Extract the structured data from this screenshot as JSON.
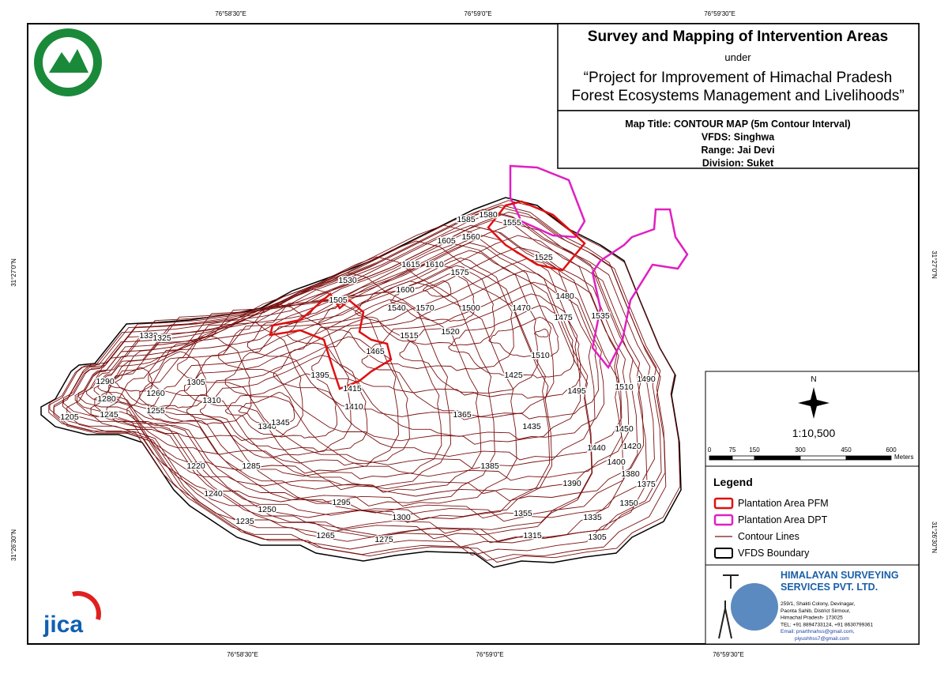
{
  "coordinates": {
    "top": [
      "76°58'30\"E",
      "76°59'0\"E",
      "76°59'30\"E"
    ],
    "bottom": [
      "76°58'30\"E",
      "76°59'0\"E",
      "76°59'30\"E"
    ],
    "left": [
      "31°27'0\"N",
      "31°26'30\"N"
    ],
    "right": [
      "31°27'0\"N",
      "31°26'30\"N"
    ]
  },
  "header": {
    "title": "Survey and Mapping of Intervention Areas",
    "under": "under",
    "project_line1": "“Project for Improvement of Himachal Pradesh",
    "project_line2": "Forest Ecosystems Management and Livelihoods”"
  },
  "map_info": [
    "Map Title: CONTOUR MAP (5m Contour Interval)",
    "VFDS: Singhwa",
    "Range: Jai Devi",
    "Division: Suket"
  ],
  "contour_labels": [
    "1615",
    "1610",
    "1605",
    "1585",
    "1580",
    "1560",
    "1555",
    "1575",
    "1525",
    "1600",
    "1570",
    "1540",
    "1530",
    "1505",
    "1515",
    "1520",
    "1500",
    "1470",
    "1480",
    "1475",
    "1535",
    "1465",
    "1510",
    "1425",
    "1495",
    "1510",
    "1490",
    "1395",
    "1415",
    "1410",
    "1365",
    "1330",
    "1325",
    "1290",
    "1260",
    "1280",
    "1305",
    "1310",
    "1245",
    "1255",
    "1205",
    "1340",
    "1345",
    "1220",
    "1285",
    "1240",
    "1250",
    "1295",
    "1235",
    "1265",
    "1275",
    "1300",
    "1355",
    "1315",
    "1305",
    "1335",
    "1350",
    "1385",
    "1435",
    "1450",
    "1440",
    "1420",
    "1400",
    "1380",
    "1375",
    "1390"
  ],
  "north": "N",
  "scale": {
    "ratio": "1:10,500",
    "ticks": [
      "0",
      "75",
      "150",
      "300",
      "450",
      "600"
    ],
    "unit": "Meters"
  },
  "legend": {
    "title": "Legend",
    "items": [
      "Plantation Area PFM",
      "Plantation Area DPT",
      "Contour Lines",
      "VFDS Boundary"
    ]
  },
  "company": {
    "name_line1": "HIMALAYAN SURVEYING",
    "name_line2": "SERVICES PVT. LTD.",
    "address": [
      "259/1, Shakti Colony, Devinagar,",
      "Paonta Sahib, District Sirmour,",
      "Himachal Pradesh- 173025",
      "TEL: +91 8894733124, +91 8630799361",
      "Email: pnarthnahss@gmail.com,",
      "piyushhss7@gmail.com"
    ]
  },
  "jica": "jica"
}
